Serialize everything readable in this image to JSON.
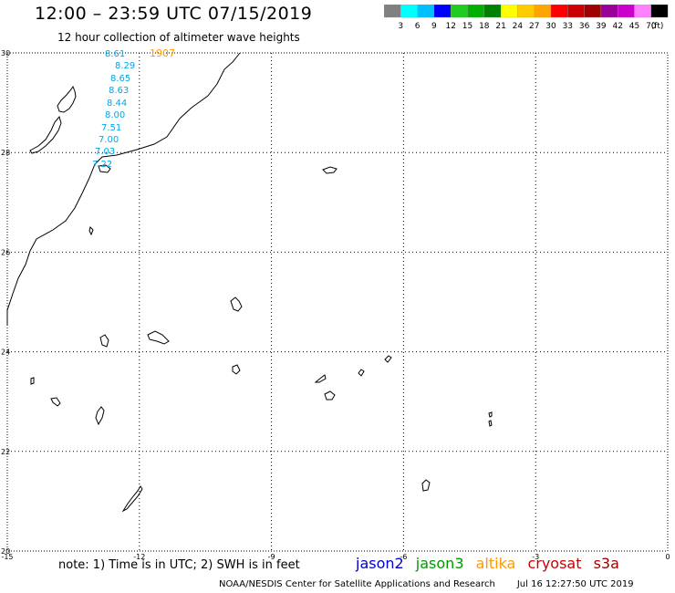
{
  "title": "12:00 – 23:59 UTC 07/15/2019",
  "subtitle": "12 hour collection of altimeter wave heights",
  "legend": {
    "colors": [
      "#808080",
      "#00ffff",
      "#00bfff",
      "#0000ff",
      "#1fcc1f",
      "#00b000",
      "#008000",
      "#ffff00",
      "#ffcc00",
      "#ffa500",
      "#ff0000",
      "#cc0000",
      "#a00000",
      "#990099",
      "#cc00cc",
      "#ff80ff",
      "#000000"
    ],
    "labels": [
      "3",
      "6",
      "9",
      "12",
      "15",
      "18",
      "21",
      "24",
      "27",
      "30",
      "33",
      "36",
      "39",
      "42",
      "45",
      "70",
      "(ft)"
    ]
  },
  "map": {
    "lon_ticks": [
      "-15",
      "-12",
      "-9",
      "-6",
      "-3",
      "0"
    ],
    "lat_ticks": [
      "30",
      "28",
      "26",
      "24",
      "22",
      "20"
    ],
    "track": {
      "time_label": "1907",
      "time_color": "#ff9900",
      "value_color": "#00a8e8",
      "values": [
        "8.61",
        "8.29",
        "8.65",
        "8.63",
        "8.44",
        "8.00",
        "7.51",
        "7.00",
        "7.03",
        "7.22"
      ]
    }
  },
  "note": "note:  1) Time is in UTC;  2) SWH is in feet",
  "missions": [
    {
      "name": "jason2",
      "color": "#0000cc"
    },
    {
      "name": "jason3",
      "color": "#009900"
    },
    {
      "name": "altika",
      "color": "#ff9900"
    },
    {
      "name": "cryosat",
      "color": "#cc0000"
    },
    {
      "name": "s3a",
      "color": "#990000"
    }
  ],
  "credit": "NOAA/NESDIS Center for Satellite Applications and Research",
  "timestamp": "Jul 16 12:27:50 UTC 2019"
}
